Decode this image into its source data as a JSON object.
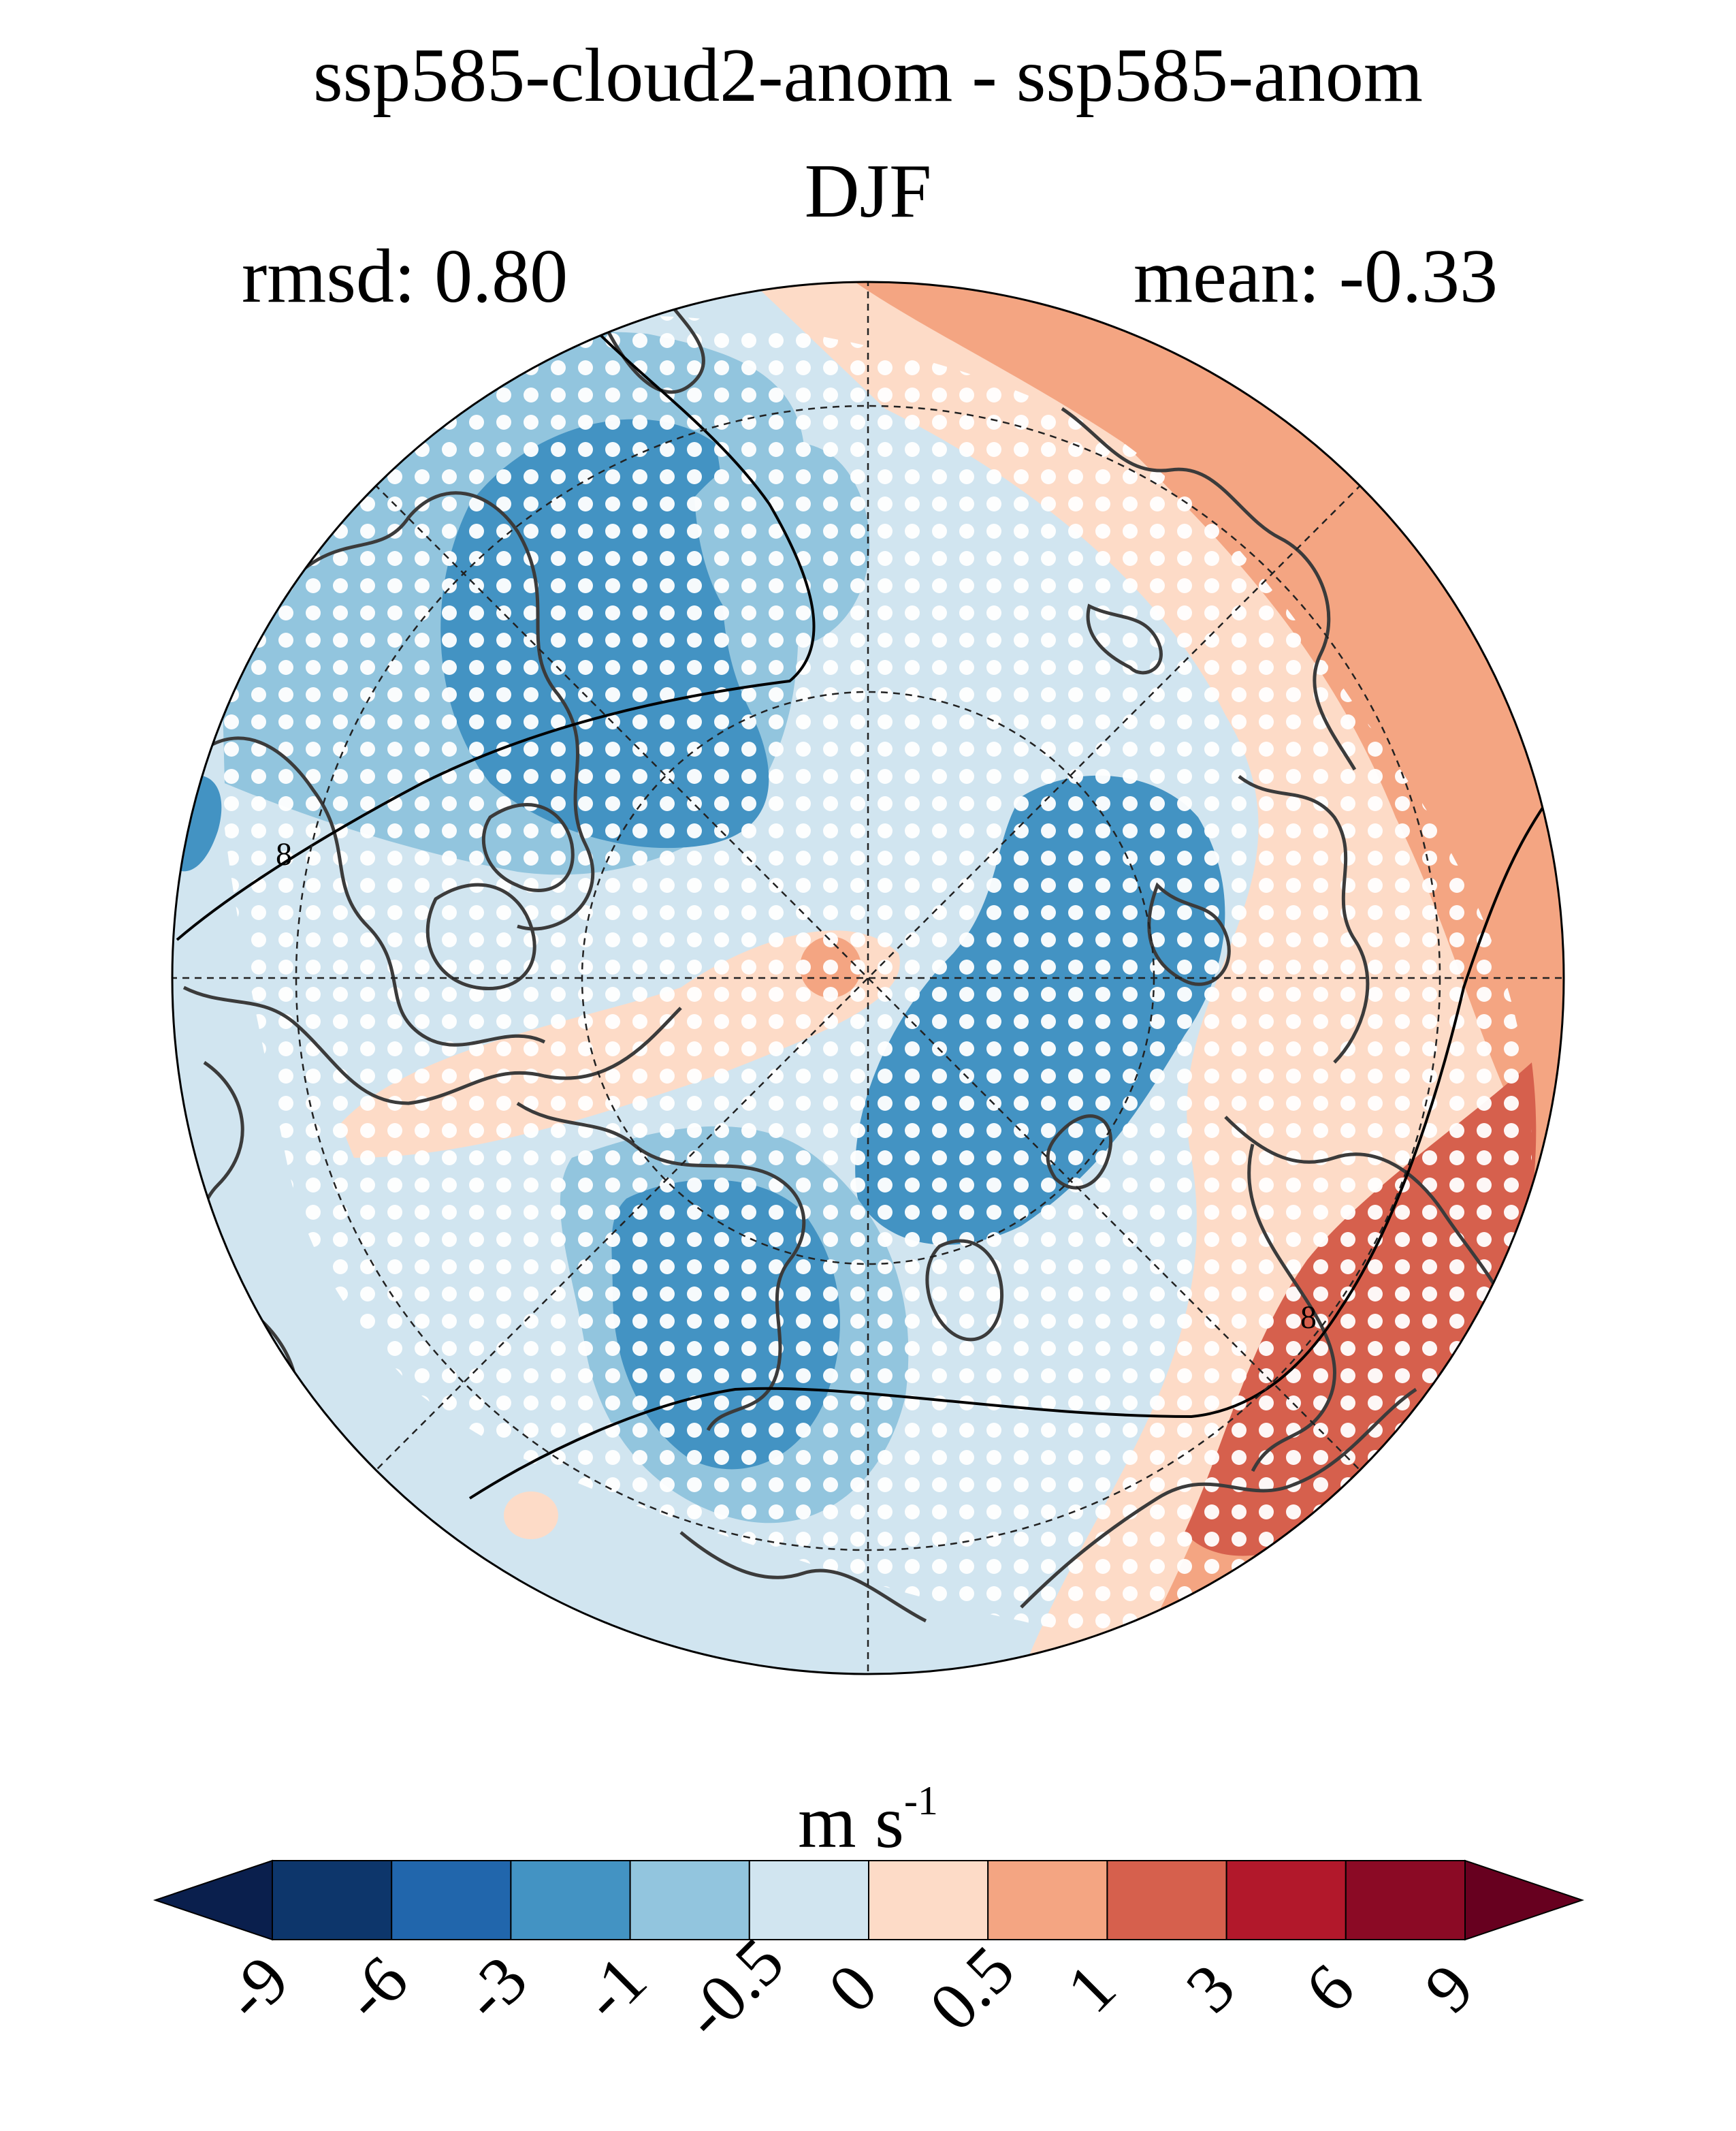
{
  "map": {
    "title": "ssp585-cloud2-anom - ssp585-anom",
    "season": "DJF",
    "rmsd_label": "rmsd: 0.80",
    "mean_label": "mean: -0.33",
    "projection": "north-polar-stereographic",
    "stippling": "white dots mark significant regions",
    "contour_lines": "black outline contours"
  },
  "colorbar": {
    "units_base": "m s",
    "units_exp": "-1",
    "extend": "both",
    "levels": [
      "-9",
      "-6",
      "-3",
      "-1",
      "-0.5",
      "0",
      "0.5",
      "1",
      "3",
      "6",
      "9"
    ],
    "colors": [
      "#0a1f4d",
      "#0d366b",
      "#2166ac",
      "#4393c3",
      "#92c5de",
      "#d1e5f0",
      "#fddbc7",
      "#f4a582",
      "#d6604d",
      "#b2182b",
      "#8b0a25",
      "#67001f"
    ]
  }
}
